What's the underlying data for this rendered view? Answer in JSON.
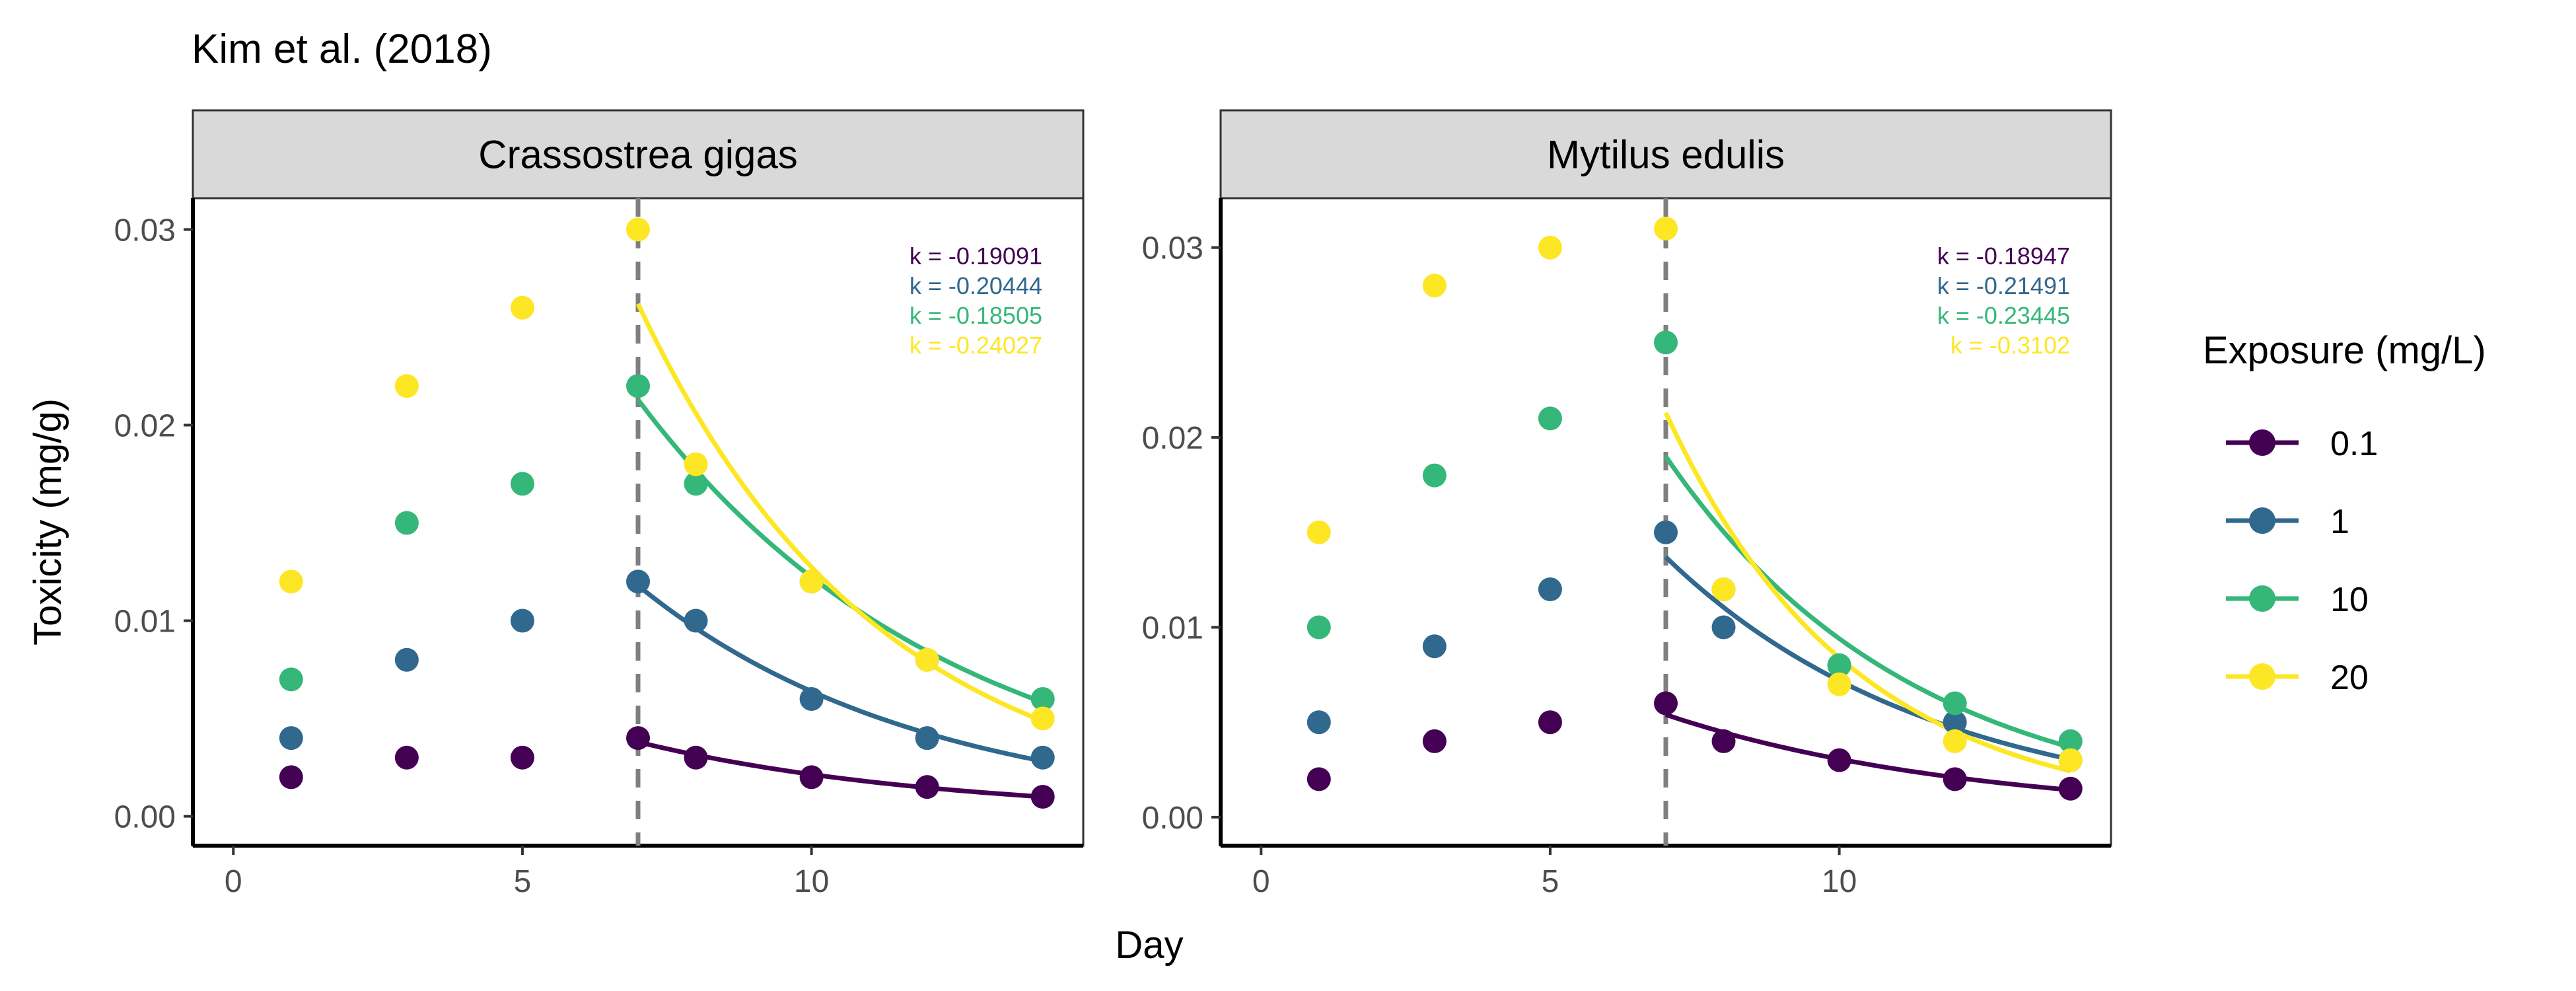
{
  "title": "Kim et al. (2018)",
  "xlabel": "Day",
  "ylabel": "Toxicity (mg/g)",
  "legend": {
    "title": "Exposure (mg/L)",
    "position": "right",
    "items": [
      {
        "label": "0.1",
        "color": "#440154"
      },
      {
        "label": "1",
        "color": "#31688E"
      },
      {
        "label": "10",
        "color": "#35B779"
      },
      {
        "label": "20",
        "color": "#FDE725"
      }
    ]
  },
  "chart_data": [
    {
      "type": "scatter",
      "panel_title": "Crassostrea gigas",
      "xlim": [
        -0.7,
        14.7
      ],
      "ylim": [
        -0.0015,
        0.0316
      ],
      "x_ticks": [
        0,
        5,
        10
      ],
      "y_ticks": [
        0.0,
        0.01,
        0.02,
        0.03
      ],
      "y_tick_labels": [
        "0.00",
        "0.01",
        "0.02",
        "0.03"
      ],
      "vline": 7,
      "series": [
        {
          "name": "0.1",
          "color": "#440154",
          "k_label": "k = -0.19091",
          "k": -0.19091,
          "x": [
            1,
            3,
            5,
            7,
            8,
            10,
            12,
            14
          ],
          "y": [
            0.002,
            0.003,
            0.003,
            0.004,
            0.003,
            0.002,
            0.0015,
            0.001
          ],
          "fit": {
            "x0": 7,
            "y0": 0.0038,
            "x1": 14
          }
        },
        {
          "name": "1",
          "color": "#31688E",
          "k_label": "k = -0.20444",
          "k": -0.20444,
          "x": [
            1,
            3,
            5,
            7,
            8,
            10,
            12,
            14
          ],
          "y": [
            0.004,
            0.008,
            0.01,
            0.012,
            0.01,
            0.006,
            0.004,
            0.003
          ],
          "fit": {
            "x0": 7,
            "y0": 0.0118,
            "x1": 14
          }
        },
        {
          "name": "10",
          "color": "#35B779",
          "k_label": "k = -0.18505",
          "k": -0.18505,
          "x": [
            1,
            3,
            5,
            7,
            8,
            10,
            12,
            14
          ],
          "y": [
            0.007,
            0.015,
            0.017,
            0.022,
            0.017,
            0.012,
            0.008,
            0.006
          ],
          "fit": {
            "x0": 7,
            "y0": 0.0213,
            "x1": 14
          }
        },
        {
          "name": "20",
          "color": "#FDE725",
          "k_label": "k = -0.24027",
          "k": -0.24027,
          "x": [
            1,
            3,
            5,
            7,
            8,
            10,
            12,
            14
          ],
          "y": [
            0.012,
            0.022,
            0.026,
            0.03,
            0.018,
            0.012,
            0.008,
            0.005
          ],
          "fit": {
            "x0": 7,
            "y0": 0.0262,
            "x1": 14
          }
        }
      ]
    },
    {
      "type": "scatter",
      "panel_title": "Mytilus edulis",
      "xlim": [
        -0.7,
        14.7
      ],
      "ylim": [
        -0.0015,
        0.0326
      ],
      "x_ticks": [
        0,
        5,
        10
      ],
      "y_ticks": [
        0.0,
        0.01,
        0.02,
        0.03
      ],
      "y_tick_labels": [
        "0.00",
        "0.01",
        "0.02",
        "0.03"
      ],
      "vline": 7,
      "series": [
        {
          "name": "0.1",
          "color": "#440154",
          "k_label": "k = -0.18947",
          "k": -0.18947,
          "x": [
            1,
            3,
            5,
            7,
            8,
            10,
            12,
            14
          ],
          "y": [
            0.002,
            0.004,
            0.005,
            0.006,
            0.004,
            0.003,
            0.002,
            0.0015
          ],
          "fit": {
            "x0": 7,
            "y0": 0.0054,
            "x1": 14
          }
        },
        {
          "name": "1",
          "color": "#31688E",
          "k_label": "k = -0.21491",
          "k": -0.21491,
          "x": [
            1,
            3,
            5,
            7,
            8,
            10,
            12,
            14
          ],
          "y": [
            0.005,
            0.009,
            0.012,
            0.015,
            0.01,
            0.008,
            0.005,
            0.003
          ],
          "fit": {
            "x0": 7,
            "y0": 0.0137,
            "x1": 14
          }
        },
        {
          "name": "10",
          "color": "#35B779",
          "k_label": "k = -0.23445",
          "k": -0.23445,
          "x": [
            1,
            3,
            5,
            7,
            8,
            10,
            12,
            14
          ],
          "y": [
            0.01,
            0.018,
            0.021,
            0.025,
            0.012,
            0.008,
            0.006,
            0.004
          ],
          "fit": {
            "x0": 7,
            "y0": 0.019,
            "x1": 14
          }
        },
        {
          "name": "20",
          "color": "#FDE725",
          "k_label": "k = -0.3102",
          "k": -0.3102,
          "x": [
            1,
            3,
            5,
            7,
            8,
            10,
            12,
            14
          ],
          "y": [
            0.015,
            0.028,
            0.03,
            0.031,
            0.012,
            0.007,
            0.004,
            0.003
          ],
          "fit": {
            "x0": 7,
            "y0": 0.0213,
            "x1": 14
          }
        }
      ]
    }
  ]
}
